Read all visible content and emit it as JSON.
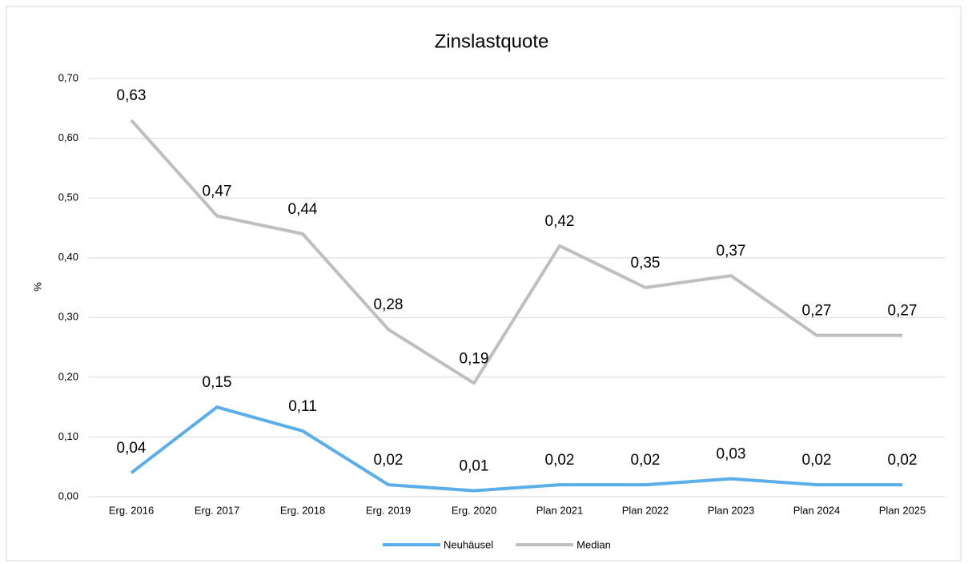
{
  "chart_data": {
    "type": "line",
    "title": "Zinslastquote",
    "y_label": "%",
    "categories": [
      "Erg. 2016",
      "Erg. 2017",
      "Erg. 2018",
      "Erg. 2019",
      "Erg. 2020",
      "Plan 2021",
      "Plan 2022",
      "Plan 2023",
      "Plan 2024",
      "Plan 2025"
    ],
    "series": [
      {
        "name": "Neuhäusel",
        "color": "#5aaeea",
        "values": [
          0.04,
          0.15,
          0.11,
          0.02,
          0.01,
          0.02,
          0.02,
          0.03,
          0.02,
          0.02
        ],
        "value_labels": [
          "0,04",
          "0,15",
          "0,11",
          "0,02",
          "0,01",
          "0,02",
          "0,02",
          "0,03",
          "0,02",
          "0,02"
        ]
      },
      {
        "name": "Median",
        "color": "#bfbfbf",
        "values": [
          0.63,
          0.47,
          0.44,
          0.28,
          0.19,
          0.42,
          0.35,
          0.37,
          0.27,
          0.27
        ],
        "value_labels": [
          "0,63",
          "0,47",
          "0,44",
          "0,28",
          "0,19",
          "0,42",
          "0,35",
          "0,37",
          "0,27",
          "0,27"
        ]
      }
    ],
    "ylim": [
      0,
      0.7
    ],
    "yticks": [
      {
        "value": 0,
        "label": "0,00"
      },
      {
        "value": 0.1,
        "label": "0,10"
      },
      {
        "value": 0.2,
        "label": "0,20"
      },
      {
        "value": 0.3,
        "label": "0,30"
      },
      {
        "value": 0.4,
        "label": "0,40"
      },
      {
        "value": 0.5,
        "label": "0,50"
      },
      {
        "value": 0.6,
        "label": "0,60"
      },
      {
        "value": 0.7,
        "label": "0,70"
      }
    ],
    "grid": true,
    "legend": "bottom"
  }
}
